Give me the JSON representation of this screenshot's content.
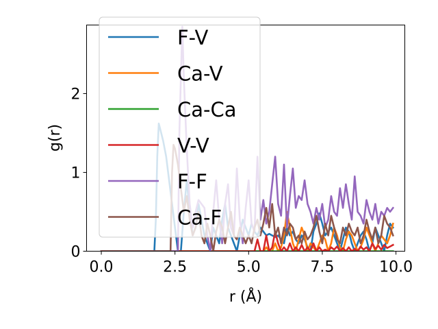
{
  "chart_data": {
    "type": "line",
    "title": "",
    "xlabel": "r (Å)",
    "ylabel": "g(r)",
    "xlim": [
      -0.5,
      10.3
    ],
    "ylim": [
      0,
      2.87
    ],
    "xticks": [
      0.0,
      2.5,
      5.0,
      7.5,
      10.0
    ],
    "xtick_labels": [
      "0.0",
      "2.5",
      "5.0",
      "7.5",
      "10.0"
    ],
    "yticks": [
      0,
      1,
      2
    ],
    "ytick_labels": [
      "0",
      "1",
      "2"
    ],
    "grid": false,
    "legend_position": "upper-left",
    "series": [
      {
        "name": "F-V",
        "color": "#1f77b4",
        "x": [
          0.0,
          1.8,
          1.85,
          1.9,
          1.95,
          2.0,
          2.1,
          2.2,
          2.3,
          2.4,
          2.5,
          2.6,
          2.7,
          2.8,
          2.9,
          3.0,
          3.1,
          3.2,
          3.3,
          3.4,
          3.5,
          3.6,
          3.7,
          3.8,
          3.9,
          4.0,
          4.1,
          4.2,
          4.3,
          4.4,
          4.5,
          4.6,
          4.7,
          4.8,
          4.9,
          5.0,
          5.1,
          5.2,
          5.3,
          5.4,
          5.5,
          5.6,
          5.7,
          5.8,
          5.9,
          6.0,
          6.1,
          6.2,
          6.3,
          6.4,
          6.5,
          6.6,
          6.7,
          6.8,
          6.9,
          7.0,
          7.1,
          7.2,
          7.3,
          7.4,
          7.5,
          7.6,
          7.7,
          7.8,
          7.9,
          8.0,
          8.1,
          8.2,
          8.3,
          8.4,
          8.5,
          8.6,
          8.7,
          8.8,
          8.9,
          9.0,
          9.1,
          9.2,
          9.3,
          9.4,
          9.5,
          9.6,
          9.7,
          9.8,
          9.9
        ],
        "y": [
          0,
          0,
          0.4,
          1.2,
          1.62,
          1.55,
          1.4,
          1.2,
          0.9,
          0.6,
          0.3,
          0.0,
          0.0,
          0.5,
          0.9,
          0.5,
          0.2,
          0.3,
          0.6,
          0.4,
          0.2,
          0.1,
          0.0,
          0.3,
          0.2,
          0.1,
          0.4,
          0.6,
          0.3,
          0.2,
          0.1,
          0.0,
          0.2,
          0.4,
          0.3,
          0.2,
          0.35,
          0.25,
          0.2,
          0.3,
          0.25,
          0.2,
          0.22,
          0.2,
          0.18,
          0.2,
          0.15,
          0.1,
          0.3,
          0.2,
          0.25,
          0.15,
          0.1,
          0.2,
          0.15,
          0.05,
          0.0,
          0.25,
          0.35,
          0.48,
          0.35,
          0.2,
          0.25,
          0.3,
          0.2,
          0.1,
          0.0,
          0.15,
          0.3,
          0.25,
          0.1,
          0.0,
          0.1,
          0.2,
          0.25,
          0.15,
          0.0,
          0.1,
          0.3,
          0.2,
          0.1,
          0.0,
          0.2,
          0.35,
          0.3
        ]
      },
      {
        "name": "Ca-V",
        "color": "#ff7f0e",
        "x": [
          0.0,
          5.5,
          5.6,
          5.7,
          5.8,
          5.9,
          6.0,
          6.1,
          6.2,
          6.3,
          6.4,
          6.5,
          6.6,
          6.7,
          6.8,
          6.9,
          7.0,
          7.1,
          7.2,
          7.3,
          7.4,
          7.5,
          7.6,
          7.7,
          7.8,
          7.9,
          8.0,
          8.1,
          8.2,
          8.3,
          8.4,
          8.5,
          8.6,
          8.7,
          8.8,
          8.9,
          9.0,
          9.1,
          9.2,
          9.3,
          9.4,
          9.5,
          9.6,
          9.7,
          9.8,
          9.9
        ],
        "y": [
          0,
          0,
          0.05,
          0.0,
          0.0,
          0.1,
          0.0,
          0.05,
          0.2,
          0.5,
          0.3,
          0.1,
          0.0,
          0.15,
          0.3,
          0.2,
          0.0,
          0.1,
          0.05,
          0.0,
          0.1,
          0.2,
          0.15,
          0.0,
          0.1,
          0.3,
          0.2,
          0.05,
          0.0,
          0.15,
          0.25,
          0.2,
          0.1,
          0.0,
          0.05,
          0.15,
          0.3,
          0.2,
          0.1,
          0.0,
          0.1,
          0.2,
          0.15,
          0.1,
          0.2,
          0.35
        ]
      },
      {
        "name": "Ca-Ca",
        "color": "#2ca02c",
        "x": [
          0.0,
          9.9
        ],
        "y": [
          0,
          0
        ]
      },
      {
        "name": "V-V",
        "color": "#d62728",
        "x": [
          0.0,
          5.2,
          5.3,
          5.4,
          5.5,
          5.6,
          5.7,
          5.8,
          5.9,
          6.0,
          6.1,
          6.2,
          6.3,
          6.4,
          6.5,
          6.6,
          6.7,
          6.8,
          6.9,
          7.0,
          7.1,
          7.2,
          7.3,
          7.4,
          7.5,
          7.6,
          7.7,
          7.8,
          7.9,
          8.0,
          8.1,
          8.2,
          8.3,
          8.4,
          8.5,
          8.6,
          8.7,
          8.8,
          8.9,
          9.0,
          9.1,
          9.2,
          9.3,
          9.4,
          9.5,
          9.6,
          9.7,
          9.8,
          9.9
        ],
        "y": [
          0,
          0,
          0.15,
          0.0,
          0.0,
          0.2,
          0.0,
          0.05,
          0.25,
          0.1,
          0.0,
          0.05,
          0.0,
          0.1,
          0.0,
          0.05,
          0.0,
          0.08,
          0.0,
          0.05,
          0.0,
          0.1,
          0.0,
          0.05,
          0.0,
          0.02,
          0.0,
          0.05,
          0.02,
          0.06,
          0.0,
          0.04,
          0.0,
          0.05,
          0.0,
          0.03,
          0.0,
          0.06,
          0.02,
          0.05,
          0.0,
          0.1,
          0.03,
          0.07,
          0.02,
          0.08,
          0.04,
          0.06,
          0.08
        ]
      },
      {
        "name": "F-F",
        "color": "#9467bd",
        "x": [
          0.0,
          2.6,
          2.65,
          2.7,
          2.75,
          2.8,
          2.9,
          3.0,
          3.1,
          3.2,
          3.3,
          3.4,
          3.5,
          3.6,
          3.7,
          3.8,
          3.9,
          4.0,
          4.1,
          4.2,
          4.3,
          4.4,
          4.5,
          4.6,
          4.7,
          4.8,
          4.9,
          5.0,
          5.1,
          5.2,
          5.3,
          5.4,
          5.5,
          5.6,
          5.7,
          5.8,
          5.9,
          6.0,
          6.1,
          6.2,
          6.3,
          6.4,
          6.5,
          6.6,
          6.7,
          6.8,
          6.9,
          7.0,
          7.1,
          7.2,
          7.3,
          7.4,
          7.5,
          7.6,
          7.7,
          7.8,
          7.9,
          8.0,
          8.1,
          8.2,
          8.3,
          8.4,
          8.5,
          8.6,
          8.7,
          8.8,
          8.9,
          9.0,
          9.1,
          9.2,
          9.3,
          9.4,
          9.5,
          9.6,
          9.7,
          9.8,
          9.9
        ],
        "y": [
          0,
          0,
          1.5,
          2.2,
          2.85,
          2.2,
          1.3,
          0.6,
          0.3,
          0.5,
          0.65,
          0.6,
          0.55,
          0.2,
          0.0,
          0.5,
          0.9,
          0.4,
          0.1,
          0.6,
          0.85,
          0.3,
          0.2,
          1.05,
          0.4,
          0.1,
          0.55,
          0.9,
          0.35,
          0.25,
          1.2,
          0.4,
          0.65,
          0.35,
          0.5,
          0.85,
          1.2,
          0.6,
          0.45,
          1.1,
          0.3,
          0.7,
          1.05,
          0.55,
          0.7,
          0.65,
          0.9,
          0.6,
          0.5,
          0.35,
          0.55,
          0.4,
          0.6,
          0.3,
          0.4,
          0.7,
          0.5,
          0.45,
          0.8,
          0.55,
          0.85,
          0.6,
          0.4,
          0.95,
          0.5,
          0.45,
          0.35,
          0.65,
          0.5,
          0.4,
          0.6,
          0.35,
          0.5,
          0.45,
          0.55,
          0.5,
          0.55
        ]
      },
      {
        "name": "Ca-F",
        "color": "#8c564b",
        "x": [
          0.0,
          2.35,
          2.4,
          2.45,
          2.5,
          2.6,
          2.7,
          2.8,
          2.9,
          3.0,
          3.1,
          3.2,
          3.3,
          3.4,
          3.5,
          3.6,
          3.7,
          3.8,
          3.9,
          4.0,
          4.1,
          4.2,
          4.3,
          4.4,
          4.5,
          4.6,
          4.7,
          4.8,
          4.9,
          5.0,
          5.1,
          5.2,
          5.3,
          5.4,
          5.5,
          5.6,
          5.7,
          5.8,
          5.9,
          6.0,
          6.1,
          6.2,
          6.3,
          6.4,
          6.5,
          6.6,
          6.7,
          6.8,
          6.9,
          7.0,
          7.1,
          7.2,
          7.3,
          7.4,
          7.5,
          7.6,
          7.7,
          7.8,
          7.9,
          8.0,
          8.1,
          8.2,
          8.3,
          8.4,
          8.5,
          8.6,
          8.7,
          8.8,
          8.9,
          9.0,
          9.1,
          9.2,
          9.3,
          9.4,
          9.5,
          9.6,
          9.7,
          9.8,
          9.9
        ],
        "y": [
          0,
          0,
          1.0,
          1.35,
          1.3,
          1.1,
          0.8,
          0.5,
          0.7,
          0.4,
          0.2,
          0.3,
          0.5,
          0.2,
          0.1,
          0.35,
          0.2,
          0.0,
          0.25,
          0.4,
          0.3,
          0.1,
          0.3,
          0.5,
          0.2,
          0.15,
          0.3,
          0.2,
          0.1,
          0.2,
          0.1,
          0.3,
          0.4,
          0.2,
          0.35,
          0.55,
          0.3,
          0.6,
          0.2,
          0.3,
          0.1,
          0.3,
          0.2,
          0.35,
          0.3,
          0.15,
          0.2,
          0.1,
          0.25,
          0.15,
          0.2,
          0.3,
          0.45,
          0.25,
          0.1,
          0.35,
          0.2,
          0.45,
          0.3,
          0.15,
          0.1,
          0.3,
          0.2,
          0.35,
          0.25,
          0.2,
          0.3,
          0.1,
          0.2,
          0.4,
          0.25,
          0.15,
          0.3,
          0.1,
          0.2,
          0.45,
          0.35,
          0.3,
          0.2
        ]
      }
    ]
  }
}
